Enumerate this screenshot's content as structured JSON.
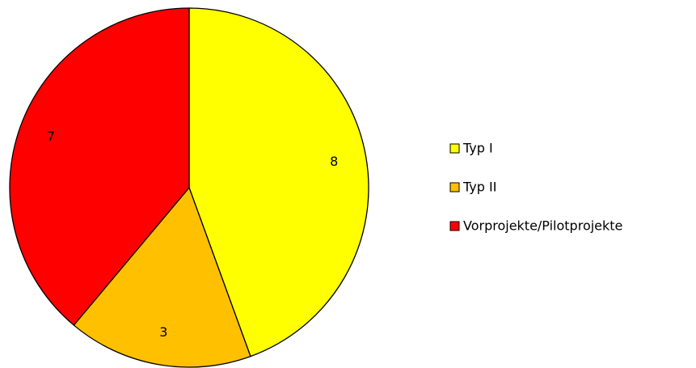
{
  "chart_data": {
    "type": "pie",
    "categories": [
      "Typ I",
      "Typ II",
      "Vorprojekte/Pilotprojekte"
    ],
    "values": [
      8,
      3,
      7
    ],
    "colors": [
      "#ffff00",
      "#ffc000",
      "#ff0000"
    ],
    "legend": "right"
  }
}
